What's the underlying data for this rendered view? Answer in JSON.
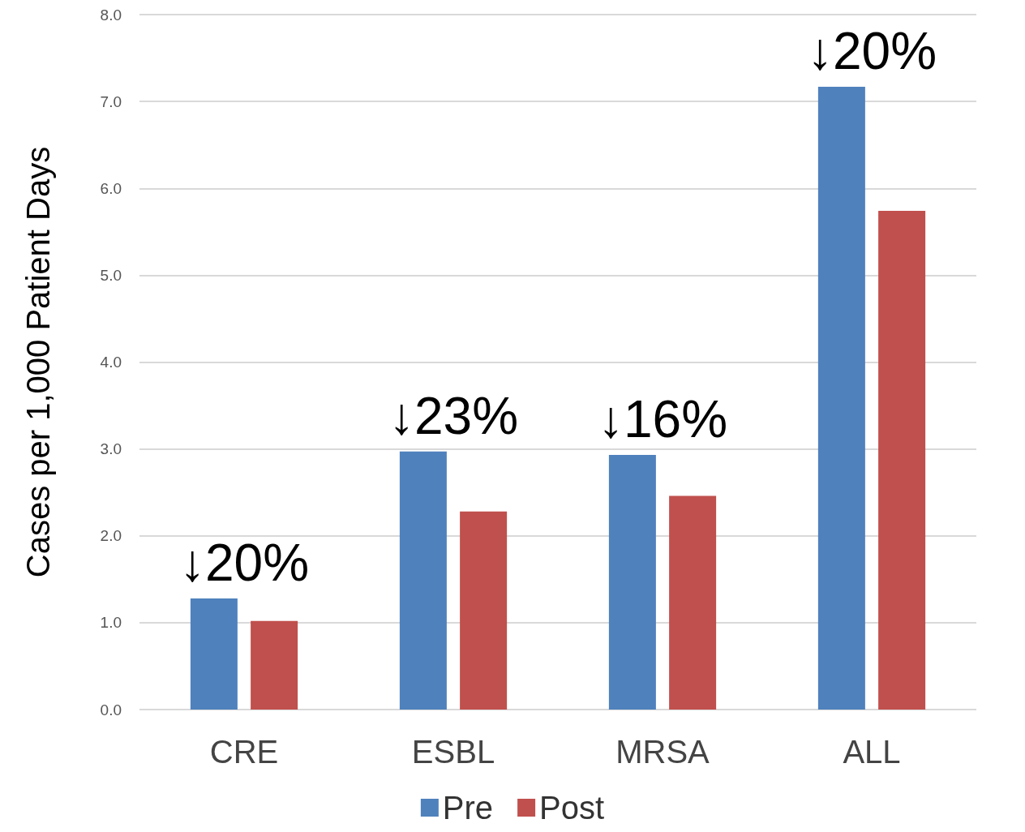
{
  "chart_data": {
    "type": "bar",
    "ylabel": "Cases per 1,000 Patient Days",
    "categories": [
      "CRE",
      "ESBL",
      "MRSA",
      "ALL"
    ],
    "series": [
      {
        "name": "Pre",
        "color": "#4f81bd",
        "values": [
          1.28,
          2.97,
          2.93,
          7.17
        ]
      },
      {
        "name": "Post",
        "color": "#c0504d",
        "values": [
          1.02,
          2.28,
          2.46,
          5.74
        ]
      }
    ],
    "ylim": [
      0,
      8
    ],
    "yticks": [
      {
        "value": 0,
        "label": "0.0"
      },
      {
        "value": 1,
        "label": "1.0"
      },
      {
        "value": 2,
        "label": "2.0"
      },
      {
        "value": 3,
        "label": "3.0"
      },
      {
        "value": 4,
        "label": "4.0"
      },
      {
        "value": 5,
        "label": "5.0"
      },
      {
        "value": 6,
        "label": "6.0"
      },
      {
        "value": 7,
        "label": "7.0"
      },
      {
        "value": 8,
        "label": "8.0"
      }
    ],
    "grid": "y",
    "legend": "bottom",
    "annotations": [
      "↓20%",
      "↓23%",
      "↓16%",
      "↓20%"
    ]
  }
}
